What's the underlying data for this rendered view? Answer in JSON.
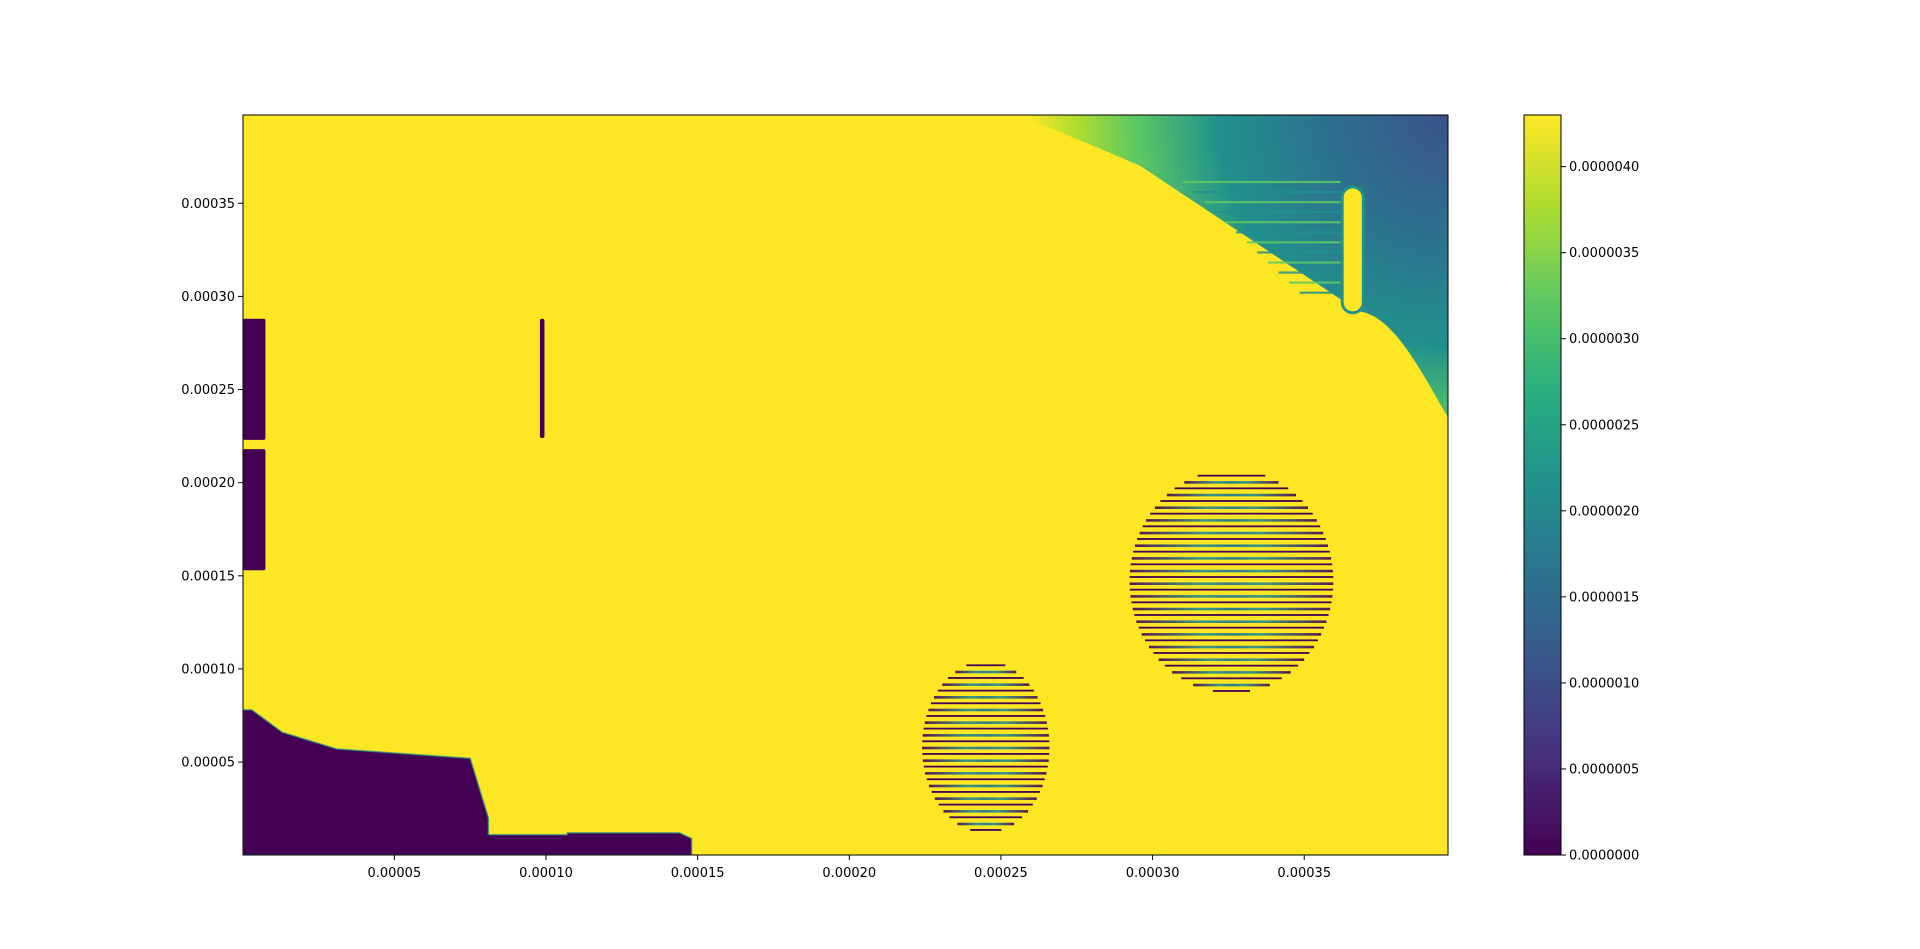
{
  "chart_data": {
    "type": "heatmap",
    "title": "",
    "xlabel": "",
    "ylabel": "",
    "xlim": [
      1e-07,
      0.0003974
    ],
    "ylim": [
      1e-07,
      0.0003974
    ],
    "x_ticks": [
      5e-05,
      0.0001,
      0.00015,
      0.0002,
      0.00025,
      0.0003,
      0.00035
    ],
    "x_tick_labels": [
      "0.00005",
      "0.00010",
      "0.00015",
      "0.00020",
      "0.00025",
      "0.00030",
      "0.00035"
    ],
    "y_ticks": [
      5e-05,
      0.0001,
      0.00015,
      0.0002,
      0.00025,
      0.0003,
      0.00035
    ],
    "y_tick_labels": [
      "0.00005",
      "0.00010",
      "0.00015",
      "0.00020",
      "0.00025",
      "0.00030",
      "0.00035"
    ],
    "colorbar": {
      "colormap": "viridis",
      "range": [
        0.0,
        4.3e-06
      ],
      "ticks": [
        0.0,
        5e-07,
        1e-06,
        1.5e-06,
        2e-06,
        2.5e-06,
        3e-06,
        3.5e-06,
        4e-06
      ],
      "tick_labels": [
        "0.0000000",
        "0.0000005",
        "0.0000010",
        "0.0000015",
        "0.0000020",
        "0.0000025",
        "0.0000030",
        "0.0000035",
        "0.0000040"
      ]
    },
    "background_value": 4.3e-06,
    "grid": false,
    "regions": [
      {
        "kind": "low_blocks_left_edge",
        "value": 0.0,
        "x": [
          1e-07,
          7.5e-06
        ],
        "y": [
          0.000153,
          0.000218
        ]
      },
      {
        "kind": "low_blocks_left_edge",
        "value": 0.0,
        "x": [
          1e-07,
          7.5e-06
        ],
        "y": [
          0.000223,
          0.000288
        ]
      },
      {
        "kind": "low_thin_line",
        "value": 0.0,
        "x": [
          9.8e-05,
          9.95e-05
        ],
        "y": [
          0.000224,
          0.000288
        ]
      },
      {
        "kind": "low_region_bottom_left",
        "value": 0.0,
        "polygon": [
          [
            1e-07,
            1e-07
          ],
          [
            1e-07,
            7.8e-05
          ],
          [
            3e-06,
            7.8e-05
          ],
          [
            1.3e-05,
            6.6e-05
          ],
          [
            3.1e-05,
            5.7e-05
          ],
          [
            7.5e-05,
            5.2e-05
          ],
          [
            8.1e-05,
            2e-05
          ],
          [
            8.1e-05,
            1.1e-05
          ],
          [
            0.000107,
            1.1e-05
          ],
          [
            0.000107,
            1.2e-05
          ],
          [
            0.000144,
            1.2e-05
          ],
          [
            0.000148,
            9e-06
          ],
          [
            0.000148,
            1e-07
          ]
        ]
      },
      {
        "kind": "striped_ellipse",
        "value_low": 0.0,
        "value_mid": 2.2e-06,
        "center": [
          0.000245,
          5.8e-05
        ],
        "half_width": 2e-05,
        "half_height": 4.6e-05,
        "y_range": [
          1e-05,
          0.000113
        ]
      },
      {
        "kind": "striped_ellipse",
        "value_low": 0.0,
        "value_mid": 2.2e-06,
        "center": [
          0.000326,
          0.000147
        ],
        "half_width": 3.2e-05,
        "half_height": 6e-05,
        "y_range": [
          8.8e-05,
          0.000228
        ]
      },
      {
        "kind": "gradient_corner",
        "value_min": 1e-06,
        "value_max": 4.3e-06,
        "corner": [
          0.0003974,
          0.0003974
        ]
      },
      {
        "kind": "bright_capsule",
        "value": 4.3e-06,
        "x": [
          0.000363,
          0.000369
        ],
        "y": [
          0.000292,
          0.000358
        ]
      }
    ]
  }
}
